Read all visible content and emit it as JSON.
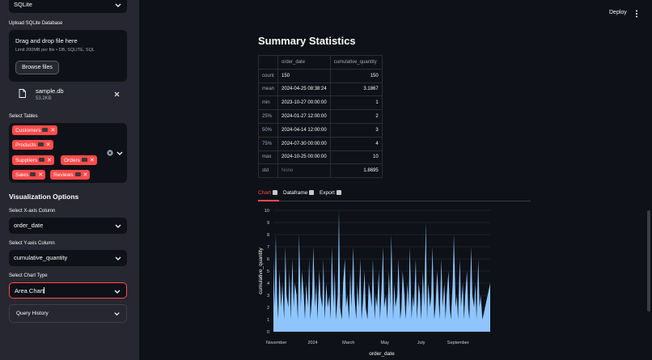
{
  "sidebar": {
    "db_type_select": "SQLite",
    "upload_label": "Upload SQLite Database",
    "uploader": {
      "title": "Drag and drop file here",
      "limit": "Limit 200MB per file • DB, SQLITE, SQL",
      "browse_label": "Browse files"
    },
    "file": {
      "name": "sample.db",
      "size": "53.2KB"
    },
    "tables_label": "Select Tables",
    "tables": [
      "Customers",
      "Products",
      "Suppliers",
      "Orders",
      "Sales",
      "Reviews"
    ],
    "viz_heading": "Visualization Options",
    "x_label": "Select X-axis Column",
    "x_value": "order_date",
    "y_label": "Select Y-axis Column",
    "y_value": "cumulative_quantity",
    "chart_type_label": "Select Chart Type",
    "chart_type_value": "Area Chart",
    "query_history_label": "Query History"
  },
  "header": {
    "deploy_label": "Deploy",
    "menu_icon": "vertical-dots-icon"
  },
  "summary": {
    "title": "Summary Statistics",
    "columns": [
      "",
      "order_date",
      "cumulative_quantity"
    ],
    "rows": [
      [
        "count",
        "150",
        "150"
      ],
      [
        "mean",
        "2024-04-25 08:38:24",
        "3.1867"
      ],
      [
        "min",
        "2023-10-27 00:00:00",
        "1"
      ],
      [
        "25%",
        "2024-01-27 12:00:00",
        "2"
      ],
      [
        "50%",
        "2024-04-14 12:00:00",
        "3"
      ],
      [
        "75%",
        "2024-07-30 00:00:00",
        "4"
      ],
      [
        "max",
        "2024-10-25 00:00:00",
        "10"
      ],
      [
        "std",
        "None",
        "1.8695"
      ]
    ]
  },
  "tabs": [
    {
      "label": "Chart",
      "icon": "chart-icon",
      "active": true
    },
    {
      "label": "Dataframe",
      "icon": "document-icon",
      "active": false
    },
    {
      "label": "Export",
      "icon": "export-icon",
      "active": false
    }
  ],
  "colors": {
    "accent": "#ff4b4b",
    "area": "#8ec5ff",
    "sidebar": "#262730",
    "background": "#0e1117"
  },
  "chart_data": {
    "type": "area",
    "xlabel": "order_date",
    "ylabel": "cumulative_quantity",
    "ylim": [
      0,
      10
    ],
    "yticks": [
      0,
      1,
      2,
      3,
      4,
      5,
      6,
      7,
      8,
      9,
      10
    ],
    "xticks": [
      {
        "date": "2023-11-01",
        "label": "November"
      },
      {
        "date": "2024-01-01",
        "label": "2024"
      },
      {
        "date": "2024-03-01",
        "label": "March"
      },
      {
        "date": "2024-05-01",
        "label": "May"
      },
      {
        "date": "2024-07-01",
        "label": "July"
      },
      {
        "date": "2024-09-01",
        "label": "September"
      }
    ],
    "xrange": [
      "2023-10-27",
      "2024-10-25"
    ],
    "grid": true,
    "series": [
      {
        "x": [
          "2023-10-27",
          "2023-10-29",
          "2023-10-31",
          "2023-11-02",
          "2023-11-04",
          "2023-11-06",
          "2023-11-09",
          "2023-11-11",
          "2023-11-14",
          "2023-11-16",
          "2023-11-18",
          "2023-11-21",
          "2023-11-23",
          "2023-11-25",
          "2023-11-28",
          "2023-11-30",
          "2023-12-02",
          "2023-12-05",
          "2023-12-07",
          "2023-12-09",
          "2023-12-12",
          "2023-12-14",
          "2023-12-17",
          "2023-12-19",
          "2023-12-21",
          "2023-12-24",
          "2023-12-26",
          "2023-12-28",
          "2023-12-31",
          "2024-01-02",
          "2024-01-05",
          "2024-01-07",
          "2024-01-09",
          "2024-01-12",
          "2024-01-14",
          "2024-01-17",
          "2024-01-19",
          "2024-01-21",
          "2024-01-24",
          "2024-01-26",
          "2024-01-29",
          "2024-01-31",
          "2024-02-02",
          "2024-02-05",
          "2024-02-07",
          "2024-02-09",
          "2024-02-12",
          "2024-02-14",
          "2024-02-16",
          "2024-02-19",
          "2024-02-21",
          "2024-02-24",
          "2024-02-26",
          "2024-02-28",
          "2024-03-02",
          "2024-03-04",
          "2024-03-06",
          "2024-03-09",
          "2024-03-11",
          "2024-03-14",
          "2024-03-16",
          "2024-03-18",
          "2024-03-21",
          "2024-03-23",
          "2024-03-26",
          "2024-03-28",
          "2024-03-30",
          "2024-04-02",
          "2024-04-04",
          "2024-04-07",
          "2024-04-09",
          "2024-04-11",
          "2024-04-14",
          "2024-04-16",
          "2024-04-18",
          "2024-04-21",
          "2024-04-23",
          "2024-04-26",
          "2024-04-28",
          "2024-04-30",
          "2024-05-03",
          "2024-05-05",
          "2024-05-08",
          "2024-05-10",
          "2024-05-12",
          "2024-05-15",
          "2024-05-17",
          "2024-05-19",
          "2024-05-22",
          "2024-05-24",
          "2024-05-27",
          "2024-05-29",
          "2024-05-31",
          "2024-06-03",
          "2024-06-05",
          "2024-06-08",
          "2024-06-10",
          "2024-06-12",
          "2024-06-15",
          "2024-06-17",
          "2024-06-19",
          "2024-06-22",
          "2024-06-24",
          "2024-06-27",
          "2024-06-29",
          "2024-07-01",
          "2024-07-04",
          "2024-07-06",
          "2024-07-09",
          "2024-07-11",
          "2024-07-13",
          "2024-07-16",
          "2024-07-18",
          "2024-07-20",
          "2024-07-23",
          "2024-07-25",
          "2024-07-28",
          "2024-07-30",
          "2024-08-01",
          "2024-08-04",
          "2024-08-06",
          "2024-08-09",
          "2024-08-11",
          "2024-08-13",
          "2024-08-16",
          "2024-08-18",
          "2024-08-20",
          "2024-08-23",
          "2024-08-25",
          "2024-08-28",
          "2024-08-30",
          "2024-09-01",
          "2024-09-04",
          "2024-09-06",
          "2024-09-09",
          "2024-09-11",
          "2024-09-13",
          "2024-09-16",
          "2024-09-18",
          "2024-09-20",
          "2024-09-23",
          "2024-09-25",
          "2024-09-28",
          "2024-09-30",
          "2024-10-02",
          "2024-10-05",
          "2024-10-07",
          "2024-10-09",
          "2024-10-12",
          "2024-10-25"
        ],
        "values": [
          6,
          2,
          8,
          3,
          1,
          5,
          2,
          4,
          1,
          7,
          3,
          2,
          5,
          1,
          6,
          2,
          4,
          3,
          1,
          8,
          2,
          5,
          3,
          1,
          4,
          2,
          6,
          1,
          3,
          7,
          2,
          4,
          1,
          5,
          3,
          2,
          6,
          1,
          4,
          2,
          3,
          1,
          7,
          2,
          5,
          1,
          3,
          10,
          2,
          1,
          4,
          6,
          2,
          3,
          1,
          5,
          2,
          7,
          3,
          1,
          4,
          2,
          6,
          1,
          3,
          5,
          2,
          1,
          4,
          3,
          2,
          6,
          1,
          3,
          2,
          5,
          1,
          4,
          7,
          2,
          3,
          1,
          5,
          2,
          8,
          1,
          4,
          2,
          3,
          6,
          1,
          2,
          5,
          3,
          1,
          4,
          2,
          7,
          1,
          3,
          2,
          6,
          1,
          4,
          3,
          1,
          5,
          2,
          9,
          1,
          4,
          2,
          3,
          7,
          1,
          2,
          5,
          3,
          1,
          6,
          2,
          4,
          1,
          3,
          5,
          2,
          1,
          4,
          8,
          2,
          3,
          1,
          6,
          2,
          4,
          1,
          3,
          5,
          2,
          1,
          7,
          3,
          2,
          4,
          1,
          6,
          2,
          3,
          1,
          4
        ]
      }
    ]
  }
}
